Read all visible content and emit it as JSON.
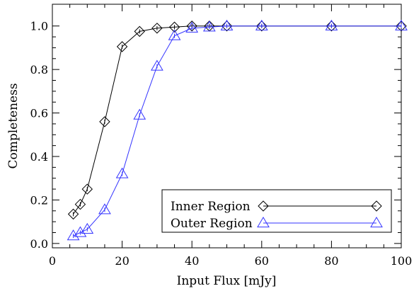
{
  "chart_data": {
    "type": "line",
    "xlabel": "Input Flux [mJy]",
    "ylabel": "Completeness",
    "xlim": [
      0,
      100
    ],
    "ylim": [
      -0.02,
      1.1
    ],
    "x_ticks": [
      0,
      20,
      40,
      60,
      80,
      100
    ],
    "x_tick_labels": [
      "0",
      "20",
      "40",
      "60",
      "80",
      "100"
    ],
    "y_ticks": [
      0.0,
      0.2,
      0.4,
      0.6,
      0.8,
      1.0
    ],
    "y_tick_labels": [
      "0.0",
      "0.2",
      "0.4",
      "0.6",
      "0.8",
      "1.0"
    ],
    "grid": false,
    "legend_position": "bottom-right",
    "series": [
      {
        "name": "Inner Region",
        "color": "#000000",
        "marker": "diamond",
        "x": [
          6,
          8,
          10,
          15,
          20,
          25,
          30,
          35,
          40,
          45,
          50,
          60,
          80,
          100
        ],
        "y": [
          0.135,
          0.18,
          0.25,
          0.56,
          0.905,
          0.975,
          0.99,
          0.995,
          1.0,
          1.0,
          1.0,
          1.0,
          1.0,
          1.0
        ]
      },
      {
        "name": "Outer Region",
        "color": "#3333ff",
        "marker": "triangle",
        "x": [
          6,
          8,
          10,
          15,
          20,
          25,
          30,
          35,
          40,
          45,
          50,
          60,
          80,
          100
        ],
        "y": [
          0.035,
          0.05,
          0.065,
          0.155,
          0.32,
          0.59,
          0.815,
          0.955,
          0.99,
          0.995,
          1.0,
          1.0,
          1.0,
          1.0
        ]
      }
    ]
  }
}
